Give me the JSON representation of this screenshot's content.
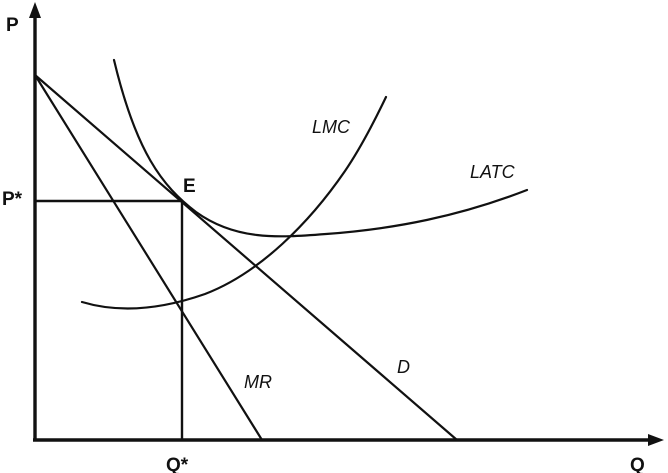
{
  "axes": {
    "y_label": "P",
    "x_label": "Q"
  },
  "equilibrium": {
    "price_label": "P*",
    "quantity_label": "Q*",
    "point_label": "E"
  },
  "curves": {
    "lmc": "LMC",
    "latc": "LATC",
    "mr": "MR",
    "demand": "D"
  }
}
